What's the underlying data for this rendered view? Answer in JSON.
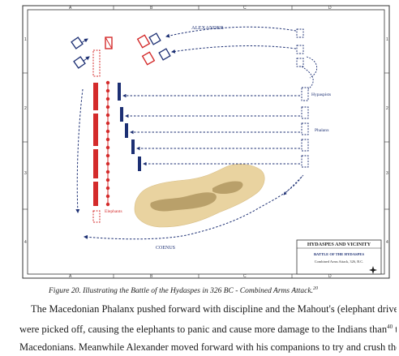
{
  "map": {
    "grid_letters": [
      "A",
      "B",
      "C",
      "D"
    ],
    "grid_numbers": [
      "1",
      "2",
      "3",
      "4"
    ],
    "labels": {
      "alexander": "ALEXANDER",
      "hypaspists": "Hypaspists",
      "phalanx": "Phalanx",
      "elephants": "Elephants",
      "coenus": "COENUS"
    },
    "legend": {
      "title": "HYDASPES AND VICINITY",
      "subtitle": "BATTLE OF THE HYDASPES",
      "detail": "Combined Arms Attack, 326, B.C."
    },
    "colors": {
      "indian": "#d42b2b",
      "macedonian": "#1c2f73",
      "terrain": "#e9d3a0",
      "terrain_dark": "#b59a60"
    }
  },
  "caption": {
    "text": "Figure 20. Illustrating the Battle of the Hydaspes in 326 BC - Combined Arms Attack.",
    "ref": "20"
  },
  "body": {
    "line1": "The Macedonian Phalanx pushed forward with discipline and the Mahout's (elephant drivers)",
    "line2a": "were picked off, causing the elephants to panic and cause more damage to the Indians than",
    "line2_ref": "40",
    "line2b": " the",
    "line3": "Macedonians. Meanwhile Alexander moved forward with his companions to try and crush the"
  }
}
